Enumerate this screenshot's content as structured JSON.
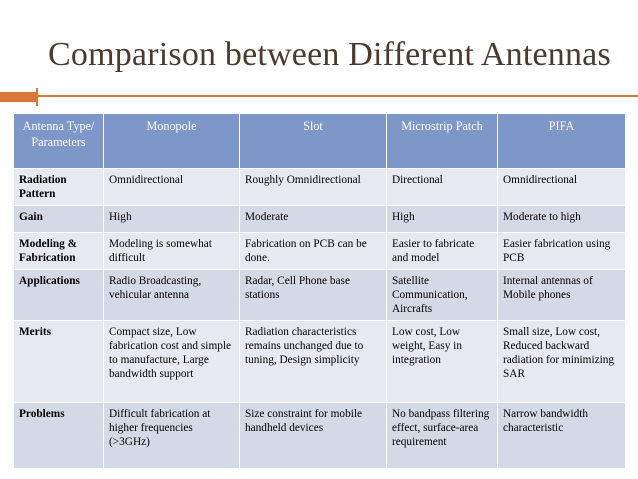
{
  "title": "Comparison between Different Antennas",
  "accent_color": "#d9773a",
  "header_color": "#7d97c9",
  "table": {
    "headers": [
      "Antenna Type/ Parameters",
      "Monopole",
      "Slot",
      "Microstrip Patch",
      "PIFA"
    ],
    "rows": [
      [
        "Radiation Pattern",
        "Omnidirectional",
        "Roughly Omnidirectional",
        "Directional",
        "Omnidirectional"
      ],
      [
        "Gain",
        "High",
        "Moderate",
        "High",
        "Moderate to high"
      ],
      [
        "Modeling & Fabrication",
        "Modeling is somewhat difficult",
        "Fabrication on PCB can be done.",
        "Easier to fabricate and model",
        "Easier fabrication using PCB"
      ],
      [
        "Applications",
        "Radio Broadcasting, vehicular antenna",
        "Radar, Cell Phone base stations",
        "Satellite Communication, Aircrafts",
        "Internal antennas of Mobile phones"
      ],
      [
        "Merits",
        "Compact size, Low fabrication cost and simple to manufacture, Large bandwidth support",
        "Radiation characteristics remains unchanged due to tuning, Design simplicity",
        "Low cost, Low weight, Easy in integration",
        "Small size, Low cost, Reduced backward radiation for minimizing SAR"
      ],
      [
        "Problems",
        "Difficult fabrication at higher frequencies (>3GHz)",
        "Size constraint for mobile handheld devices",
        "No bandpass filtering effect, surface-area requirement",
        "Narrow bandwidth characteristic"
      ]
    ]
  }
}
